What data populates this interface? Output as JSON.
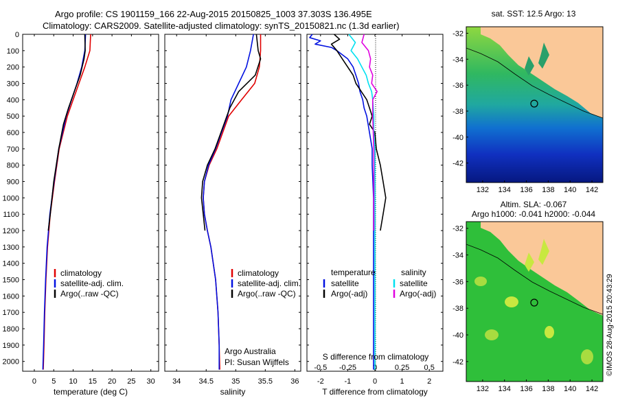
{
  "header": {
    "line1": "Argo profile: CS 1901159_166 22-Aug-2015 20150825_1003 37.303S 136.495E",
    "line2": "Climatology: CARS2009. Satellite-adjusted climatology: synTS_20150821.nc (1.3d earlier)"
  },
  "colors": {
    "clim": "#e00000",
    "sat": "#0010e0",
    "argo": "#000000",
    "cyan": "#00e0f0",
    "magenta": "#e000e0",
    "land": "#fac898"
  },
  "depth_axis": {
    "ticks": [
      "0",
      "100",
      "200",
      "300",
      "400",
      "500",
      "600",
      "700",
      "800",
      "900",
      "1000",
      "1100",
      "1200",
      "1300",
      "1400",
      "1500",
      "1600",
      "1700",
      "1800",
      "1900",
      "2000"
    ],
    "range": [
      0,
      2060
    ]
  },
  "legend_profiles": [
    "climatology",
    "satellite-adj. clim.",
    "Argo(..raw -QC)"
  ],
  "legend_diff": {
    "t_head": "temperature",
    "s_head": "salinity",
    "t_sat": "satellite",
    "t_argo": "Argo(-adj)",
    "s_sat": "satellite",
    "s_argo": "Argo(-adj)"
  },
  "credit": {
    "line1": "Argo Australia",
    "line2": "PI: Susan Wijffels"
  },
  "diff_top_label": "S difference from climatology",
  "map_top": {
    "title": "sat. SST: 12.5 Argo: 13",
    "xticks": [
      "132",
      "134",
      "136",
      "138",
      "140",
      "142"
    ],
    "yticks": [
      "-32",
      "-34",
      "-36",
      "-38",
      "-40",
      "-42"
    ]
  },
  "map_bottom": {
    "title1": "Altim. SLA: -0.067",
    "title2": "Argo h1000: -0.041 h2000: -0.044",
    "xticks": [
      "132",
      "134",
      "136",
      "138",
      "140",
      "142"
    ],
    "yticks": [
      "-32",
      "-34",
      "-36",
      "-38",
      "-40",
      "-42"
    ]
  },
  "stamp": "©IMOS 28-Aug-2015 20:43:29",
  "chart_data": [
    {
      "type": "line",
      "xlabel": "temperature (deg C)",
      "xticks": [
        "0",
        "5",
        "10",
        "15",
        "20",
        "25",
        "30"
      ],
      "xlim": [
        -3,
        32
      ],
      "ylim": [
        0,
        2060
      ],
      "series": [
        {
          "name": "climatology",
          "depth": [
            0,
            100,
            200,
            300,
            400,
            500,
            700,
            900,
            1100,
            1300,
            1500,
            1700,
            1900,
            2050
          ],
          "values": [
            14.5,
            14.3,
            13.0,
            11.5,
            10.0,
            8.5,
            6.4,
            5.2,
            4.1,
            3.4,
            3.0,
            2.7,
            2.5,
            2.3
          ]
        },
        {
          "name": "satellite-adj. clim.",
          "depth": [
            0,
            100,
            200,
            300,
            400,
            500,
            700,
            900,
            1100,
            1300,
            1500,
            1700,
            1900,
            2050
          ],
          "values": [
            13.2,
            13.0,
            12.2,
            11.0,
            9.6,
            8.2,
            6.3,
            5.1,
            4.0,
            3.3,
            2.9,
            2.6,
            2.4,
            2.2
          ]
        },
        {
          "name": "Argo(..raw -QC)",
          "depth": [
            0,
            100,
            150,
            250,
            350,
            450,
            550,
            700,
            900,
            1100,
            1200
          ],
          "values": [
            13.0,
            13.1,
            12.8,
            11.8,
            10.3,
            8.8,
            7.5,
            6.3,
            5.0,
            4.1,
            3.6
          ]
        }
      ]
    },
    {
      "type": "line",
      "xlabel": "salinity",
      "xticks": [
        "34",
        "34.5",
        "35",
        "35.5",
        "36"
      ],
      "xlim": [
        33.8,
        36.1
      ],
      "ylim": [
        0,
        2060
      ],
      "series": [
        {
          "name": "climatology",
          "depth": [
            0,
            100,
            200,
            300,
            400,
            500,
            600,
            700,
            800,
            900,
            1000,
            1100,
            1200,
            1300,
            1500,
            1700,
            1900,
            2050
          ],
          "values": [
            35.42,
            35.42,
            35.4,
            35.32,
            35.1,
            34.88,
            34.78,
            34.68,
            34.55,
            34.47,
            34.45,
            34.47,
            34.52,
            34.58,
            34.66,
            34.7,
            34.72,
            34.73
          ]
        },
        {
          "name": "satellite-adj. clim.",
          "depth": [
            0,
            100,
            200,
            300,
            400,
            500,
            600,
            700,
            800,
            900,
            1000,
            1100,
            1200,
            1300,
            1500,
            1700,
            1900,
            2050
          ],
          "values": [
            35.3,
            35.25,
            35.18,
            35.05,
            34.92,
            34.86,
            34.76,
            34.66,
            34.54,
            34.47,
            34.45,
            34.47,
            34.52,
            34.58,
            34.66,
            34.7,
            34.72,
            34.72
          ]
        },
        {
          "name": "Argo(..raw -QC)",
          "depth": [
            0,
            100,
            150,
            250,
            350,
            450,
            550,
            700,
            800,
            900,
            1000,
            1100,
            1200
          ],
          "values": [
            35.35,
            35.38,
            35.42,
            35.33,
            35.05,
            34.9,
            34.8,
            34.65,
            34.52,
            34.44,
            34.42,
            34.45,
            34.48
          ]
        }
      ]
    },
    {
      "type": "line",
      "xlabel": "T difference from climatology",
      "xticks": [
        "-2",
        "-1",
        "0",
        "1",
        "2"
      ],
      "xticks_top": [
        "-0.5",
        "-0.25",
        "0",
        "0.25",
        "0.5"
      ],
      "xlim": [
        -2.5,
        2.5
      ],
      "ylim": [
        0,
        2060
      ],
      "series": [
        {
          "name": "temperature satellite",
          "depth": [
            0,
            20,
            40,
            60,
            80,
            100,
            150,
            200,
            250,
            300,
            350,
            400,
            450,
            500,
            550,
            700,
            800,
            1000,
            1400,
            2050
          ],
          "values": [
            -2.3,
            -2.4,
            -2.0,
            -2.2,
            -1.6,
            -1.4,
            -1.0,
            -0.8,
            -0.7,
            -0.6,
            -0.55,
            -0.45,
            -0.4,
            -0.3,
            -0.25,
            -0.1,
            -0.1,
            -0.05,
            -0.05,
            -0.05
          ]
        },
        {
          "name": "temperature Argo(-adj)",
          "depth": [
            0,
            30,
            60,
            100,
            150,
            200,
            250,
            300,
            350,
            400,
            450,
            500,
            550,
            600,
            700,
            800,
            900,
            1000,
            1100,
            1200
          ],
          "values": [
            -1.5,
            -1.3,
            -1.6,
            -1.4,
            -1.2,
            -1.0,
            -0.8,
            -0.7,
            -0.5,
            -0.3,
            -0.2,
            -0.1,
            -0.2,
            0.0,
            0.05,
            0.2,
            0.3,
            0.4,
            0.3,
            0.2
          ]
        },
        {
          "name": "salinity satellite",
          "depth": [
            0,
            50,
            100,
            150,
            200,
            250,
            300,
            350,
            400,
            500,
            600,
            700,
            800,
            1000,
            1400,
            2050
          ],
          "values": [
            -0.24,
            -0.18,
            -0.22,
            -0.16,
            -0.12,
            -0.08,
            -0.06,
            -0.03,
            -0.02,
            -0.01,
            -0.01,
            0.0,
            0.0,
            0.0,
            0.0,
            0.0
          ]
        },
        {
          "name": "salinity Argo(-adj)",
          "depth": [
            0,
            50,
            100,
            150,
            200,
            250,
            300,
            350,
            400,
            500,
            700,
            900,
            1100,
            1200
          ],
          "values": [
            -0.1,
            -0.12,
            -0.06,
            -0.04,
            -0.05,
            -0.02,
            -0.03,
            0.02,
            -0.02,
            -0.02,
            -0.01,
            -0.01,
            -0.01,
            -0.01
          ]
        }
      ]
    }
  ]
}
